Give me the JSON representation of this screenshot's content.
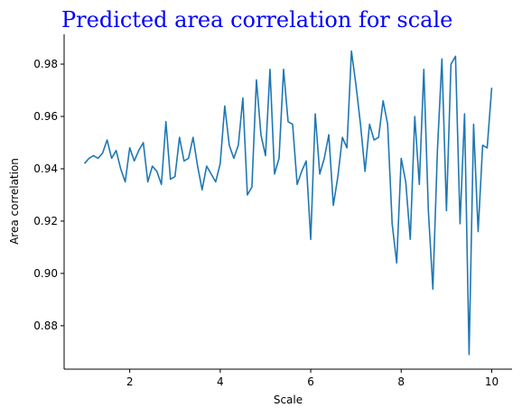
{
  "chart_data": {
    "type": "line",
    "title": "Predicted area correlation for scale",
    "xlabel": "Scale",
    "ylabel": "Area correlation",
    "x": [
      1.0,
      1.1,
      1.2,
      1.3,
      1.4,
      1.5,
      1.6,
      1.7,
      1.8,
      1.9,
      2.0,
      2.1,
      2.2,
      2.3,
      2.4,
      2.5,
      2.6,
      2.7,
      2.8,
      2.9,
      3.0,
      3.1,
      3.2,
      3.3,
      3.4,
      3.5,
      3.6,
      3.7,
      3.8,
      3.9,
      4.0,
      4.1,
      4.2,
      4.3,
      4.4,
      4.5,
      4.6,
      4.7,
      4.8,
      4.9,
      5.0,
      5.1,
      5.2,
      5.3,
      5.4,
      5.5,
      5.6,
      5.7,
      5.8,
      5.9,
      6.0,
      6.1,
      6.2,
      6.3,
      6.4,
      6.5,
      6.6,
      6.7,
      6.8,
      6.9,
      7.0,
      7.1,
      7.2,
      7.3,
      7.4,
      7.5,
      7.6,
      7.7,
      7.8,
      7.9,
      8.0,
      8.1,
      8.2,
      8.3,
      8.4,
      8.5,
      8.6,
      8.7,
      8.8,
      8.9,
      9.0,
      9.1,
      9.2,
      9.3,
      9.4,
      9.5,
      9.6,
      9.7,
      9.8,
      9.9,
      10.0
    ],
    "series": [
      {
        "name": "Area correlation",
        "color": "#1f77b4",
        "values": [
          0.942,
          0.944,
          0.945,
          0.944,
          0.946,
          0.951,
          0.944,
          0.947,
          0.94,
          0.935,
          0.948,
          0.943,
          0.947,
          0.95,
          0.935,
          0.941,
          0.939,
          0.934,
          0.958,
          0.936,
          0.937,
          0.952,
          0.943,
          0.944,
          0.952,
          0.941,
          0.932,
          0.941,
          0.938,
          0.935,
          0.942,
          0.964,
          0.949,
          0.944,
          0.949,
          0.967,
          0.93,
          0.933,
          0.974,
          0.953,
          0.945,
          0.978,
          0.938,
          0.944,
          0.978,
          0.958,
          0.957,
          0.934,
          0.939,
          0.943,
          0.913,
          0.961,
          0.938,
          0.944,
          0.953,
          0.926,
          0.937,
          0.952,
          0.948,
          0.985,
          0.972,
          0.957,
          0.939,
          0.957,
          0.951,
          0.952,
          0.966,
          0.957,
          0.919,
          0.904,
          0.944,
          0.935,
          0.913,
          0.96,
          0.934,
          0.978,
          0.924,
          0.894,
          0.947,
          0.982,
          0.924,
          0.98,
          0.983,
          0.919,
          0.961,
          0.869,
          0.957,
          0.916,
          0.949,
          0.948,
          0.971
        ]
      }
    ],
    "xlim": [
      0.55,
      10.45
    ],
    "ylim": [
      0.8634,
      0.9914
    ],
    "xticks": [
      2,
      4,
      6,
      8,
      10
    ],
    "yticks": [
      0.88,
      {
        "value": 0.9,
        "label": "0.90"
      },
      0.92,
      0.94,
      0.96,
      0.98
    ]
  }
}
